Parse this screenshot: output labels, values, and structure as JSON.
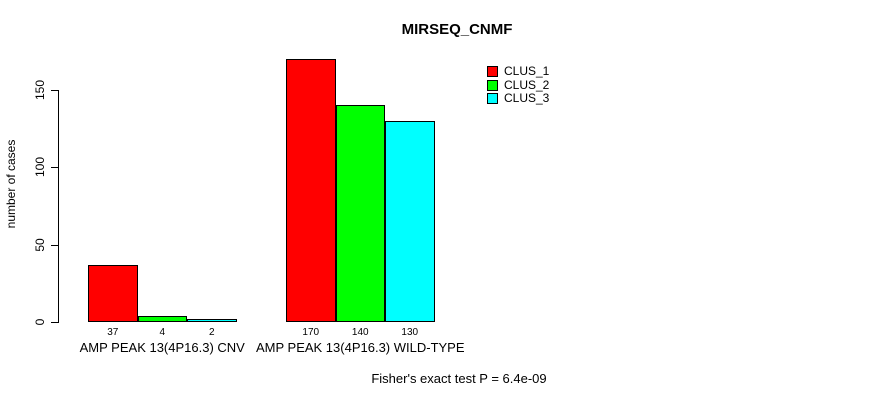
{
  "chart_data": {
    "type": "bar",
    "title": "MIRSEQ_CNMF",
    "ylabel": "number of cases",
    "xlabel": "",
    "ylim": [
      0,
      170
    ],
    "yticks": [
      0,
      50,
      100,
      150
    ],
    "grid": false,
    "legend_position": "top-right",
    "categories": [
      "AMP PEAK 13(4P16.3) CNV",
      "AMP PEAK 13(4P16.3) WILD-TYPE"
    ],
    "series": [
      {
        "name": "CLUS_1",
        "color": "#ff0000",
        "values": [
          37,
          170
        ]
      },
      {
        "name": "CLUS_2",
        "color": "#00ff00",
        "values": [
          4,
          140
        ]
      },
      {
        "name": "CLUS_3",
        "color": "#00ffff",
        "values": [
          2,
          130
        ]
      }
    ],
    "bar_value_labels_visible": true,
    "annotation": "Fisher's exact test P = 6.4e-09"
  },
  "colors": {
    "background": "#ffffff",
    "axis": "#000000",
    "text": "#000000"
  }
}
